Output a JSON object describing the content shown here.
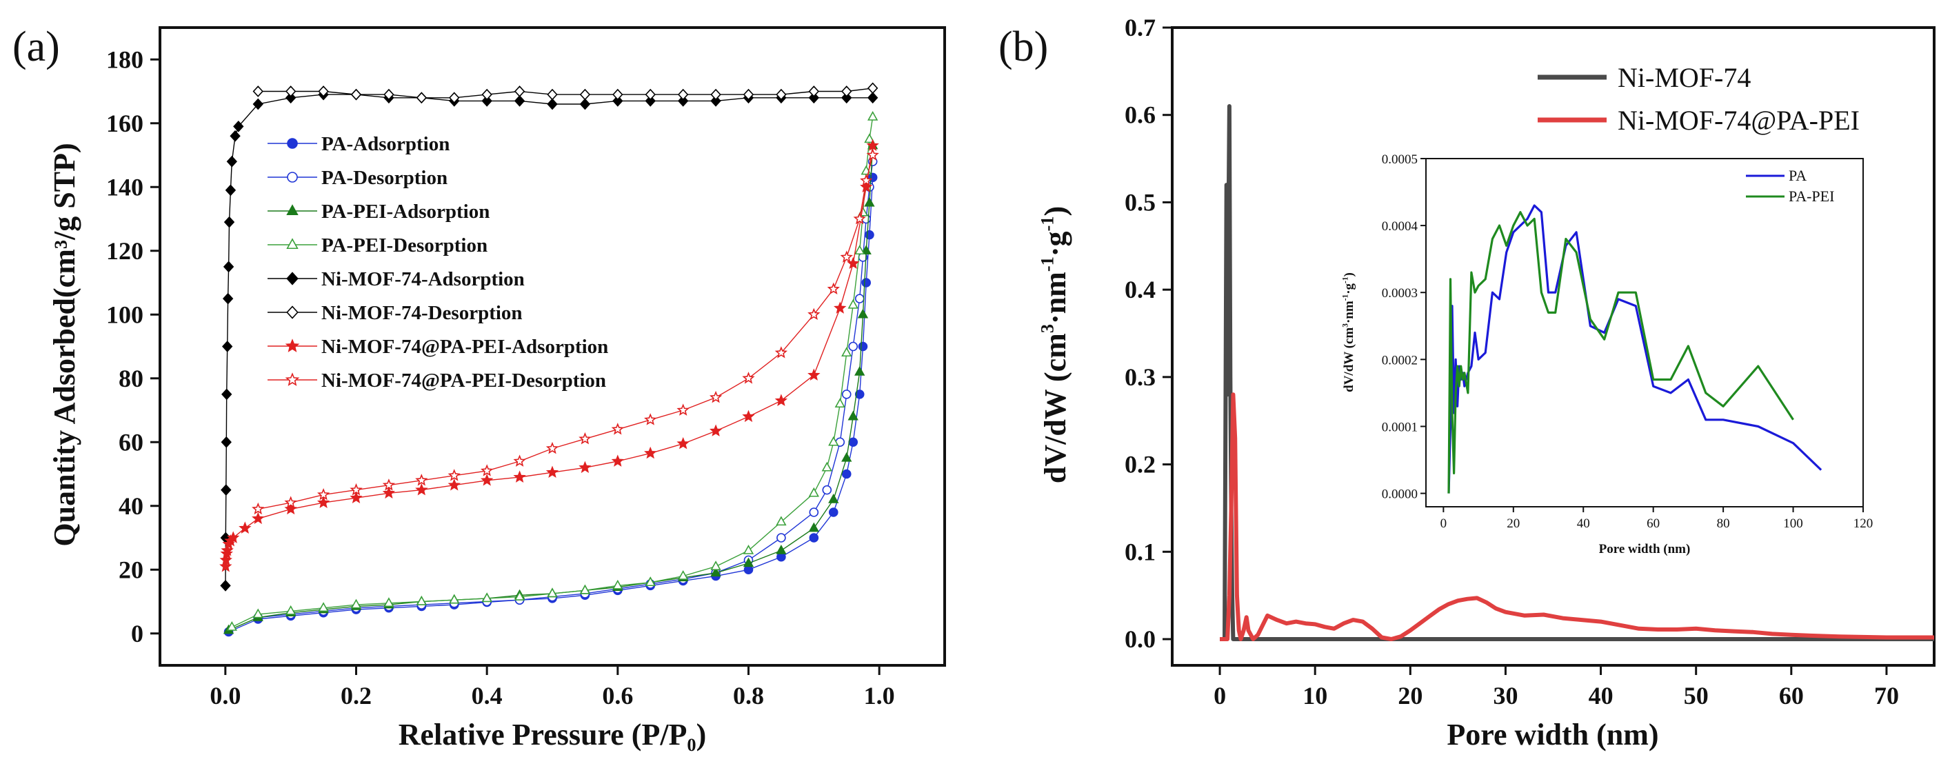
{
  "panel_a": {
    "label": "(a)"
  },
  "panel_b": {
    "label": "(b)"
  },
  "chart_data": [
    {
      "type": "line",
      "title": "(a)",
      "xlabel": "Relative Pressure (P/P₀)",
      "ylabel": "Quantity Adsorbed(cm³/g STP)",
      "xlim": [
        -0.1,
        1.1
      ],
      "ylim": [
        -10,
        190
      ],
      "xticks": [
        "0.0",
        "0.2",
        "0.4",
        "0.6",
        "0.8",
        "1.0"
      ],
      "yticks": [
        "0",
        "20",
        "40",
        "60",
        "80",
        "100",
        "120",
        "140",
        "160",
        "180"
      ],
      "legend_position": "upper-left",
      "series": [
        {
          "name": "PA-Adsorption",
          "color": "#1f35d6",
          "marker": "circle-filled",
          "x": [
            0.005,
            0.05,
            0.1,
            0.15,
            0.2,
            0.25,
            0.3,
            0.35,
            0.4,
            0.45,
            0.5,
            0.55,
            0.6,
            0.65,
            0.7,
            0.75,
            0.8,
            0.85,
            0.9,
            0.93,
            0.95,
            0.96,
            0.97,
            0.975,
            0.98,
            0.985,
            0.99
          ],
          "y": [
            0.5,
            4.5,
            5.5,
            6.5,
            7.5,
            8,
            8.5,
            9,
            9.8,
            10.5,
            11,
            12,
            13.5,
            15,
            16.5,
            18,
            20,
            24,
            30,
            38,
            50,
            60,
            75,
            90,
            110,
            125,
            143
          ]
        },
        {
          "name": "PA-Desorption",
          "color": "#1f35d6",
          "marker": "circle-open",
          "x": [
            0.99,
            0.985,
            0.98,
            0.975,
            0.97,
            0.96,
            0.95,
            0.94,
            0.92,
            0.9,
            0.85,
            0.8,
            0.75,
            0.7,
            0.65,
            0.6,
            0.55,
            0.5,
            0.45,
            0.4,
            0.35,
            0.3,
            0.25,
            0.2,
            0.15,
            0.1,
            0.05
          ],
          "y": [
            148,
            140,
            130,
            118,
            105,
            90,
            75,
            60,
            45,
            38,
            30,
            23,
            19,
            17,
            15.5,
            14,
            12.5,
            11.5,
            10.5,
            10,
            9.5,
            9,
            8.5,
            8,
            7,
            6,
            5
          ]
        },
        {
          "name": "PA-PEI-Adsorption",
          "color": "#1a7a1a",
          "marker": "triangle-filled",
          "x": [
            0.005,
            0.05,
            0.1,
            0.15,
            0.2,
            0.25,
            0.3,
            0.35,
            0.4,
            0.45,
            0.5,
            0.55,
            0.6,
            0.65,
            0.7,
            0.75,
            0.8,
            0.85,
            0.9,
            0.93,
            0.95,
            0.96,
            0.97,
            0.975,
            0.98,
            0.985,
            0.99
          ],
          "y": [
            1,
            5,
            6.5,
            7.5,
            8.5,
            9,
            10,
            10.5,
            11,
            12,
            12.5,
            13.5,
            14.5,
            16,
            17.5,
            19,
            22,
            26,
            33,
            42,
            55,
            68,
            82,
            100,
            120,
            135,
            153
          ]
        },
        {
          "name": "PA-PEI-Desorption",
          "color": "#3aa03a",
          "marker": "triangle-open",
          "x": [
            0.99,
            0.985,
            0.98,
            0.975,
            0.97,
            0.96,
            0.95,
            0.94,
            0.93,
            0.92,
            0.9,
            0.85,
            0.8,
            0.75,
            0.7,
            0.65,
            0.6,
            0.55,
            0.5,
            0.45,
            0.4,
            0.35,
            0.3,
            0.25,
            0.2,
            0.15,
            0.1,
            0.05,
            0.01
          ],
          "y": [
            162,
            155,
            145,
            132,
            120,
            103,
            88,
            72,
            60,
            52,
            44,
            35,
            26,
            21,
            18,
            16,
            15,
            13.5,
            12.5,
            11.5,
            11,
            10.5,
            10,
            9.5,
            9,
            8,
            7,
            6,
            2
          ]
        },
        {
          "name": "Ni-MOF-74-Adsorption",
          "color": "#000000",
          "marker": "diamond-filled",
          "x": [
            0.0002,
            0.0005,
            0.001,
            0.0015,
            0.002,
            0.003,
            0.004,
            0.005,
            0.006,
            0.008,
            0.01,
            0.015,
            0.02,
            0.05,
            0.1,
            0.15,
            0.2,
            0.25,
            0.3,
            0.35,
            0.4,
            0.45,
            0.5,
            0.55,
            0.6,
            0.65,
            0.7,
            0.75,
            0.8,
            0.85,
            0.9,
            0.95,
            0.99
          ],
          "y": [
            15,
            30,
            45,
            60,
            75,
            90,
            105,
            115,
            129,
            139,
            148,
            156,
            159,
            166,
            168,
            169,
            169,
            168,
            168,
            167,
            167,
            167,
            166,
            166,
            167,
            167,
            167,
            167,
            168,
            168,
            168,
            168,
            168
          ]
        },
        {
          "name": "Ni-MOF-74-Desorption",
          "color": "#000000",
          "marker": "diamond-open",
          "x": [
            0.99,
            0.95,
            0.9,
            0.85,
            0.8,
            0.75,
            0.7,
            0.65,
            0.6,
            0.55,
            0.5,
            0.45,
            0.4,
            0.35,
            0.3,
            0.25,
            0.2,
            0.15,
            0.1,
            0.05
          ],
          "y": [
            171,
            170,
            170,
            169,
            169,
            169,
            169,
            169,
            169,
            169,
            169,
            170,
            169,
            168,
            168,
            169,
            169,
            170,
            170,
            170
          ]
        },
        {
          "name": "Ni-MOF-74@PA-PEI-Adsorption",
          "color": "#e02020",
          "marker": "star-filled",
          "x": [
            0.0005,
            0.001,
            0.002,
            0.003,
            0.005,
            0.008,
            0.012,
            0.03,
            0.05,
            0.1,
            0.15,
            0.2,
            0.25,
            0.3,
            0.35,
            0.4,
            0.45,
            0.5,
            0.55,
            0.6,
            0.65,
            0.7,
            0.75,
            0.8,
            0.85,
            0.9,
            0.94,
            0.96,
            0.98,
            0.99
          ],
          "y": [
            21,
            23,
            25,
            26,
            28,
            29,
            30,
            33,
            36,
            39,
            41,
            42.5,
            44,
            45,
            46.5,
            48,
            49,
            50.5,
            52,
            54,
            56.5,
            59.5,
            63.5,
            68,
            73,
            81,
            102,
            116,
            140,
            153
          ]
        },
        {
          "name": "Ni-MOF-74@PA-PEI-Desorption",
          "color": "#e02020",
          "marker": "star-open",
          "x": [
            0.99,
            0.98,
            0.97,
            0.95,
            0.93,
            0.9,
            0.85,
            0.8,
            0.75,
            0.7,
            0.65,
            0.6,
            0.55,
            0.5,
            0.45,
            0.4,
            0.35,
            0.3,
            0.25,
            0.2,
            0.15,
            0.1,
            0.05
          ],
          "y": [
            150,
            142,
            130,
            118,
            108,
            100,
            88,
            80,
            74,
            70,
            67,
            64,
            61,
            58,
            54,
            51,
            49.5,
            48,
            46.5,
            45,
            43.5,
            41,
            39
          ]
        }
      ]
    },
    {
      "type": "line",
      "title": "(b)",
      "xlabel": "Pore width (nm)",
      "ylabel": "dV/dW (cm³·nm⁻¹·g⁻¹)",
      "ylabel_parts": [
        "dV/dW (cm",
        "3",
        "·nm",
        "-1",
        "·g",
        "-1",
        ")"
      ],
      "xlim": [
        -5,
        75
      ],
      "ylim": [
        -0.03,
        0.7
      ],
      "xticks": [
        "0",
        "10",
        "20",
        "30",
        "40",
        "50",
        "60",
        "70"
      ],
      "yticks": [
        "0.0",
        "0.1",
        "0.2",
        "0.3",
        "0.4",
        "0.5",
        "0.6",
        "0.7"
      ],
      "legend_position": "top-right",
      "series": [
        {
          "name": "Ni-MOF-74",
          "color": "#4a4a4a",
          "x": [
            0,
            0.5,
            0.7,
            0.8,
            0.9,
            1.0,
            1.1,
            1.2,
            1.3,
            1.4,
            1.5,
            2,
            5,
            10,
            20,
            30,
            40,
            50,
            60,
            70,
            75
          ],
          "y": [
            0,
            0,
            0.52,
            0.28,
            0.47,
            0.61,
            0.3,
            0.15,
            0.05,
            0,
            0,
            0,
            0,
            0,
            0,
            0,
            0,
            0,
            0,
            0,
            0
          ]
        },
        {
          "name": "Ni-MOF-74@PA-PEI",
          "color": "#e04040",
          "x": [
            0,
            0.8,
            1.0,
            1.2,
            1.4,
            1.6,
            1.8,
            2.0,
            2.2,
            2.5,
            2.8,
            3.0,
            3.5,
            4,
            5,
            6,
            7,
            8,
            9,
            10,
            11,
            12,
            13,
            14,
            15,
            16,
            17,
            18,
            19,
            20,
            21,
            22,
            23,
            24,
            25,
            26,
            27,
            28,
            29,
            30,
            32,
            34,
            36,
            38,
            40,
            42,
            44,
            46,
            48,
            50,
            52,
            54,
            56,
            58,
            60,
            62,
            65,
            70,
            75
          ],
          "y": [
            0,
            0,
            0.05,
            0.15,
            0.28,
            0.23,
            0.05,
            0.01,
            0,
            0.01,
            0.025,
            0.01,
            0,
            0.005,
            0.027,
            0.022,
            0.018,
            0.02,
            0.018,
            0.017,
            0.014,
            0.012,
            0.018,
            0.022,
            0.02,
            0.012,
            0.002,
            0,
            0.003,
            0.01,
            0.018,
            0.026,
            0.034,
            0.04,
            0.044,
            0.046,
            0.047,
            0.042,
            0.035,
            0.031,
            0.027,
            0.028,
            0.024,
            0.022,
            0.02,
            0.016,
            0.012,
            0.011,
            0.011,
            0.012,
            0.01,
            0.009,
            0.008,
            0.006,
            0.005,
            0.004,
            0.003,
            0.002,
            0.002
          ]
        }
      ],
      "inset": {
        "type": "line",
        "xlabel": "Pore width (nm)",
        "ylabel": "dV/dW (cm³·nm⁻¹·g⁻¹)",
        "ylabel_parts": [
          "dV/dW (cm",
          "3",
          "·nm",
          "-1",
          "·g",
          "-1",
          ")"
        ],
        "xlim": [
          -5,
          120
        ],
        "ylim": [
          -2e-05,
          0.0005
        ],
        "xticks": [
          "0",
          "20",
          "40",
          "60",
          "80",
          "100",
          "120"
        ],
        "yticks": [
          "0.0000",
          "0.0001",
          "0.0002",
          "0.0003",
          "0.0004",
          "0.0005"
        ],
        "legend_position": "top-left",
        "series": [
          {
            "name": "PA",
            "color": "#1a1ad8",
            "x": [
              1.5,
              2,
              2.5,
              3,
              3.5,
              4,
              4.5,
              5,
              5.5,
              6,
              7,
              8,
              9,
              10,
              12,
              14,
              16,
              18,
              20,
              22,
              24,
              26,
              28,
              30,
              32,
              35,
              38,
              42,
              46,
              50,
              55,
              60,
              65,
              70,
              75,
              80,
              90,
              100,
              108
            ],
            "y": [
              0,
              0.0001,
              0.00028,
              0.00012,
              0.0002,
              0.00013,
              0.00019,
              0.00017,
              0.00018,
              0.00016,
              0.00018,
              0.00019,
              0.00024,
              0.0002,
              0.00021,
              0.0003,
              0.00029,
              0.00036,
              0.00039,
              0.0004,
              0.00041,
              0.00043,
              0.00042,
              0.0003,
              0.0003,
              0.00037,
              0.00039,
              0.00025,
              0.00024,
              0.00029,
              0.00028,
              0.00016,
              0.00015,
              0.00017,
              0.00011,
              0.00011,
              0.0001,
              7.5e-05,
              3.5e-05
            ]
          },
          {
            "name": "PA-PEI",
            "color": "#1f8a1f",
            "x": [
              1.5,
              2,
              2.5,
              3,
              3.5,
              4,
              4.5,
              5,
              5.5,
              6,
              7,
              8,
              9,
              10,
              12,
              14,
              16,
              18,
              20,
              22,
              24,
              26,
              28,
              30,
              32,
              35,
              38,
              42,
              46,
              50,
              55,
              60,
              65,
              70,
              75,
              80,
              90,
              100
            ],
            "y": [
              0,
              0.00032,
              0.00012,
              3e-05,
              0.00015,
              0.00019,
              0.00016,
              0.00019,
              0.00017,
              0.00018,
              0.00015,
              0.00033,
              0.0003,
              0.00031,
              0.00032,
              0.00038,
              0.0004,
              0.00037,
              0.0004,
              0.00042,
              0.0004,
              0.00041,
              0.0003,
              0.00027,
              0.00027,
              0.00038,
              0.00036,
              0.00026,
              0.00023,
              0.0003,
              0.0003,
              0.00017,
              0.00017,
              0.00022,
              0.00015,
              0.00013,
              0.00019,
              0.00011
            ]
          }
        ]
      }
    }
  ]
}
